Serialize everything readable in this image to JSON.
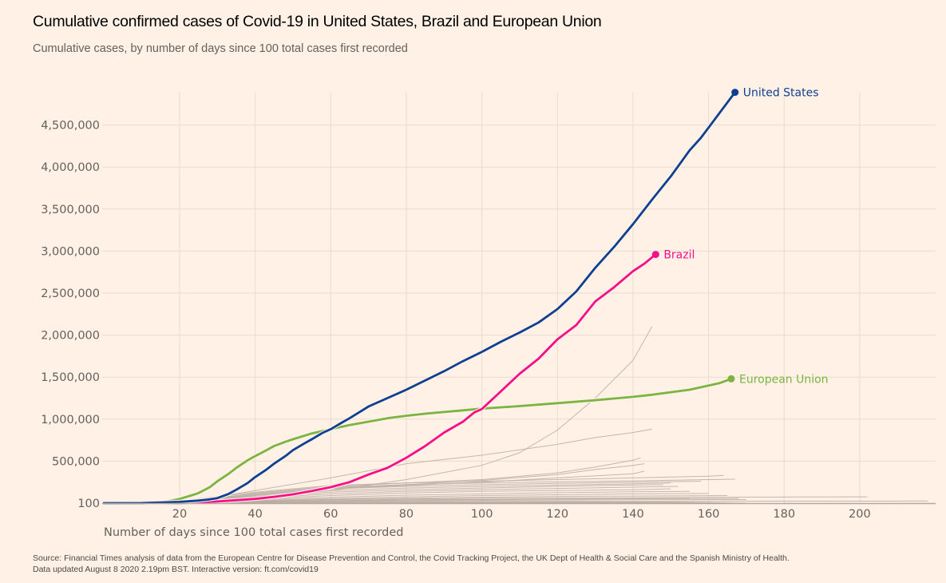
{
  "header": {
    "title": "Cumulative confirmed cases of Covid-19 in United States, Brazil and European Union",
    "subtitle": "Cumulative cases, by number of days since 100 total cases first recorded"
  },
  "footer": {
    "source_line1": "Source: Financial Times analysis of data from the European Centre for Disease Prevention and Control, the Covid Tracking Project, the UK Dept of Health & Social Care and the Spanish Ministry of Health.",
    "source_line2": "Data updated August 8 2020 2.19pm BST. Interactive version: ft.com/covid19"
  },
  "chart_data": {
    "type": "line",
    "title": "Cumulative confirmed cases of Covid-19 in United States, Brazil and European Union",
    "subtitle": "Cumulative cases, by number of days since 100 total cases first recorded",
    "xlabel": "Number of days since 100 total cases first recorded",
    "ylabel": "",
    "xlim": [
      0,
      220
    ],
    "ylim": [
      100,
      4900000
    ],
    "x_ticks": [
      20,
      40,
      60,
      80,
      100,
      120,
      140,
      160,
      180,
      200
    ],
    "y_ticks": [
      {
        "value": 100,
        "label": "100"
      },
      {
        "value": 500000,
        "label": "500,000"
      },
      {
        "value": 1000000,
        "label": "1,000,000"
      },
      {
        "value": 1500000,
        "label": "1,500,000"
      },
      {
        "value": 2000000,
        "label": "2,000,000"
      },
      {
        "value": 2500000,
        "label": "2,500,000"
      },
      {
        "value": 3000000,
        "label": "3,000,000"
      },
      {
        "value": 3500000,
        "label": "3,500,000"
      },
      {
        "value": 4000000,
        "label": "4,000,000"
      },
      {
        "value": 4500000,
        "label": "4,500,000"
      }
    ],
    "grid": true,
    "series": [
      {
        "name": "United States",
        "color": "#0f3f90",
        "highlight": true,
        "x": [
          0,
          10,
          20,
          25,
          28,
          30,
          33,
          35,
          38,
          40,
          43,
          45,
          48,
          50,
          53,
          55,
          58,
          60,
          63,
          65,
          70,
          75,
          80,
          85,
          90,
          95,
          100,
          105,
          110,
          115,
          120,
          125,
          130,
          135,
          140,
          145,
          150,
          155,
          158,
          160,
          163,
          167
        ],
        "y": [
          100,
          500,
          15000,
          30000,
          45000,
          60000,
          110000,
          160000,
          240000,
          310000,
          400000,
          470000,
          560000,
          630000,
          710000,
          760000,
          840000,
          880000,
          960000,
          1010000,
          1150000,
          1250000,
          1350000,
          1460000,
          1570000,
          1690000,
          1800000,
          1920000,
          2030000,
          2150000,
          2310000,
          2520000,
          2800000,
          3050000,
          3320000,
          3610000,
          3890000,
          4200000,
          4350000,
          4470000,
          4650000,
          4890000
        ]
      },
      {
        "name": "Brazil",
        "color": "#f50f89",
        "highlight": true,
        "x": [
          16,
          20,
          25,
          30,
          35,
          40,
          45,
          50,
          55,
          60,
          65,
          70,
          75,
          80,
          85,
          90,
          95,
          98,
          100,
          105,
          110,
          115,
          120,
          125,
          130,
          135,
          140,
          143,
          146
        ],
        "y": [
          100,
          2000,
          8000,
          20000,
          35000,
          50000,
          75000,
          105000,
          145000,
          190000,
          250000,
          340000,
          420000,
          540000,
          680000,
          840000,
          970000,
          1080000,
          1120000,
          1330000,
          1540000,
          1720000,
          1950000,
          2120000,
          2400000,
          2570000,
          2760000,
          2850000,
          2960000
        ]
      },
      {
        "name": "European Union",
        "color": "#7bb441",
        "highlight": true,
        "x": [
          0,
          5,
          10,
          15,
          18,
          20,
          23,
          25,
          28,
          30,
          33,
          35,
          38,
          40,
          43,
          45,
          48,
          50,
          55,
          60,
          65,
          70,
          75,
          80,
          85,
          90,
          95,
          100,
          110,
          120,
          130,
          140,
          145,
          150,
          155,
          160,
          163,
          166
        ],
        "y": [
          100,
          200,
          1500,
          10000,
          30000,
          50000,
          90000,
          120000,
          190000,
          260000,
          350000,
          420000,
          510000,
          560000,
          630000,
          680000,
          730000,
          760000,
          830000,
          880000,
          930000,
          970000,
          1010000,
          1040000,
          1065000,
          1085000,
          1105000,
          1125000,
          1155000,
          1190000,
          1225000,
          1265000,
          1290000,
          1320000,
          1350000,
          1400000,
          1430000,
          1480000
        ]
      }
    ],
    "background_series": [
      {
        "name": "other-country-1",
        "color": "#b9aca2",
        "x": [
          25,
          60,
          80,
          100,
          110,
          120,
          130,
          140,
          145
        ],
        "y": [
          100,
          150000,
          280000,
          450000,
          600000,
          870000,
          1250000,
          1700000,
          2100000
        ]
      },
      {
        "name": "other-country-2",
        "color": "#b9aca2",
        "x": [
          20,
          40,
          60,
          80,
          100,
          120,
          130,
          140,
          145
        ],
        "y": [
          100,
          150000,
          300000,
          470000,
          570000,
          700000,
          780000,
          840000,
          880000
        ]
      },
      {
        "name": "other-country-3",
        "color": "#b9aca2",
        "x": [
          20,
          40,
          60,
          80,
          100,
          120,
          130,
          140,
          142
        ],
        "y": [
          100,
          120000,
          200000,
          240000,
          280000,
          360000,
          430000,
          510000,
          540000
        ]
      },
      {
        "name": "other-country-4",
        "color": "#b9aca2",
        "x": [
          20,
          40,
          60,
          80,
          100,
          120,
          130,
          140,
          143
        ],
        "y": [
          100,
          100000,
          180000,
          220000,
          270000,
          340000,
          400000,
          450000,
          470000
        ]
      },
      {
        "name": "other-country-5",
        "color": "#b9aca2",
        "x": [
          20,
          40,
          60,
          80,
          100,
          120,
          140,
          143
        ],
        "y": [
          100,
          90000,
          170000,
          210000,
          250000,
          300000,
          350000,
          380000
        ]
      },
      {
        "name": "other-country-6",
        "color": "#b9aca2",
        "x": [
          15,
          40,
          60,
          80,
          100,
          120,
          140,
          160,
          164
        ],
        "y": [
          100,
          130000,
          210000,
          240000,
          260000,
          280000,
          300000,
          320000,
          330000
        ]
      },
      {
        "name": "other-country-7",
        "color": "#b9aca2",
        "x": [
          15,
          40,
          60,
          80,
          100,
          120,
          140,
          160,
          167
        ],
        "y": [
          100,
          110000,
          190000,
          220000,
          240000,
          255000,
          265000,
          280000,
          285000
        ]
      },
      {
        "name": "other-country-8",
        "color": "#b9aca2",
        "x": [
          15,
          40,
          60,
          80,
          100,
          120,
          140,
          158
        ],
        "y": [
          100,
          100000,
          170000,
          200000,
          220000,
          235000,
          250000,
          260000
        ]
      },
      {
        "name": "other-country-9",
        "color": "#b9aca2",
        "x": [
          15,
          40,
          60,
          80,
          100,
          120,
          140,
          150
        ],
        "y": [
          100,
          80000,
          150000,
          180000,
          200000,
          215000,
          230000,
          240000
        ]
      },
      {
        "name": "other-country-10",
        "color": "#b9aca2",
        "x": [
          15,
          40,
          60,
          80,
          100,
          120,
          140,
          148
        ],
        "y": [
          100,
          70000,
          130000,
          160000,
          180000,
          200000,
          215000,
          220000
        ]
      },
      {
        "name": "other-country-11",
        "color": "#b9aca2",
        "x": [
          15,
          40,
          60,
          80,
          100,
          120,
          140,
          152
        ],
        "y": [
          100,
          60000,
          110000,
          140000,
          160000,
          175000,
          190000,
          200000
        ]
      },
      {
        "name": "other-country-12",
        "color": "#b9aca2",
        "x": [
          15,
          40,
          60,
          80,
          100,
          120,
          140,
          150
        ],
        "y": [
          100,
          50000,
          90000,
          120000,
          140000,
          150000,
          160000,
          170000
        ]
      },
      {
        "name": "other-country-13",
        "color": "#b9aca2",
        "x": [
          15,
          40,
          60,
          80,
          100,
          120,
          140,
          155
        ],
        "y": [
          100,
          40000,
          70000,
          95000,
          110000,
          125000,
          135000,
          140000
        ]
      },
      {
        "name": "other-country-14",
        "color": "#b9aca2",
        "x": [
          15,
          40,
          60,
          80,
          100,
          120,
          140,
          160
        ],
        "y": [
          100,
          30000,
          55000,
          75000,
          90000,
          100000,
          110000,
          115000
        ]
      },
      {
        "name": "other-country-15",
        "color": "#b9aca2",
        "x": [
          15,
          40,
          60,
          80,
          100,
          120,
          140,
          165
        ],
        "y": [
          100,
          25000,
          45000,
          60000,
          70000,
          80000,
          85000,
          90000
        ]
      },
      {
        "name": "other-country-16",
        "color": "#b9aca2",
        "x": [
          15,
          40,
          60,
          80,
          100,
          120,
          140,
          160,
          180,
          202
        ],
        "y": [
          100,
          20000,
          40000,
          50000,
          58000,
          62000,
          66000,
          70000,
          72000,
          75000
        ]
      },
      {
        "name": "other-country-17",
        "color": "#b9aca2",
        "x": [
          15,
          40,
          60,
          80,
          100,
          120,
          140,
          160,
          168
        ],
        "y": [
          100,
          15000,
          30000,
          40000,
          45000,
          50000,
          53000,
          55000,
          56000
        ]
      },
      {
        "name": "other-country-18",
        "color": "#b9aca2",
        "x": [
          15,
          40,
          60,
          80,
          100,
          120,
          140,
          160,
          170
        ],
        "y": [
          100,
          10000,
          20000,
          28000,
          33000,
          37000,
          40000,
          42000,
          43000
        ]
      },
      {
        "name": "other-country-19",
        "color": "#b9aca2",
        "x": [
          15,
          40,
          60,
          80,
          100,
          120,
          140,
          160,
          180,
          200,
          218
        ],
        "y": [
          100,
          8000,
          14000,
          18000,
          20000,
          21000,
          22000,
          23000,
          23500,
          24000,
          24500
        ]
      },
      {
        "name": "other-country-20",
        "color": "#b9aca2",
        "x": [
          15,
          40,
          60,
          80,
          100,
          120,
          140,
          155
        ],
        "y": [
          100,
          12000,
          25000,
          35000,
          42000,
          48000,
          52000,
          55000
        ]
      }
    ],
    "labels": [
      {
        "series": "United States",
        "text": "United States"
      },
      {
        "series": "Brazil",
        "text": "Brazil"
      },
      {
        "series": "European Union",
        "text": "European Union"
      }
    ]
  }
}
